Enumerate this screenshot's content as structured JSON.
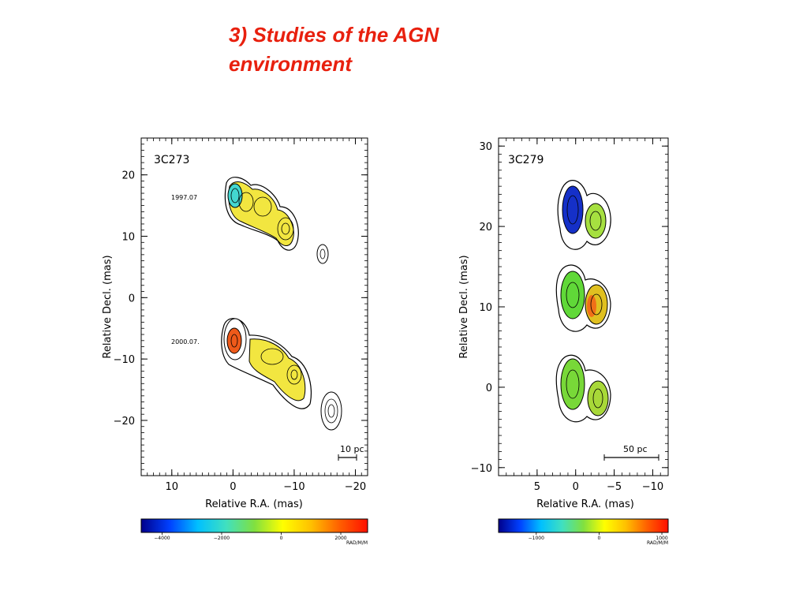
{
  "slide": {
    "title_line1": "3) Studies of the AGN",
    "title_line2": "environment"
  },
  "chart_data": [
    {
      "type": "heatmap",
      "panel_label": "3C273",
      "xlabel": "Relative R.A. (mas)",
      "ylabel": "Relative Decl. (mas)",
      "xlim": [
        15,
        -22
      ],
      "ylim": [
        -29,
        26
      ],
      "x_ticks": [
        10,
        0,
        -10,
        -20
      ],
      "x_tick_labels": [
        "10",
        "0",
        "−10",
        "−20"
      ],
      "y_ticks": [
        20,
        10,
        0,
        -10,
        -20
      ],
      "y_tick_labels": [
        "20",
        "10",
        "0",
        "−10",
        "−20"
      ],
      "epochs": [
        {
          "label": "1997.07",
          "core": [
            0,
            16
          ]
        },
        {
          "label": "2000.07.",
          "core": [
            0,
            -7
          ]
        }
      ],
      "scale_bar": {
        "label": "10 pc"
      },
      "colorbar": {
        "ticks": [
          -4000,
          -2000,
          0,
          2000
        ],
        "tick_labels": [
          "−4000",
          "−2000",
          "0",
          "2000"
        ],
        "unit": "RAD/M/M",
        "range": [
          -4700,
          2900
        ],
        "colors": [
          "#00008b",
          "#0040ff",
          "#00c0ff",
          "#40e0c0",
          "#80e040",
          "#ffff00",
          "#ffc000",
          "#ff6000",
          "#ff1000"
        ]
      }
    },
    {
      "type": "heatmap",
      "panel_label": "3C279",
      "xlabel": "Relative R.A. (mas)",
      "ylabel": "Relative Decl. (mas)",
      "xlim": [
        10,
        -12
      ],
      "ylim": [
        -11,
        31
      ],
      "x_ticks": [
        5,
        0,
        -5,
        -10
      ],
      "x_tick_labels": [
        "5",
        "0",
        "−5",
        "−10"
      ],
      "y_ticks": [
        30,
        20,
        10,
        0,
        -10
      ],
      "y_tick_labels": [
        "30",
        "20",
        "10",
        "0",
        "−10"
      ],
      "epochs": [
        {
          "core": [
            0,
            21
          ]
        },
        {
          "core": [
            0,
            11
          ]
        },
        {
          "core": [
            0,
            0
          ]
        }
      ],
      "scale_bar": {
        "label": "50 pc"
      },
      "colorbar": {
        "ticks": [
          -1000,
          0,
          1000
        ],
        "tick_labels": [
          "−1000",
          "0",
          "1000"
        ],
        "unit": "RAD/M/M",
        "range": [
          -1600,
          1100
        ],
        "colors": [
          "#00008b",
          "#0040ff",
          "#00c0ff",
          "#40e0c0",
          "#80e040",
          "#ffff00",
          "#ffc000",
          "#ff6000",
          "#ff1000"
        ]
      }
    }
  ]
}
